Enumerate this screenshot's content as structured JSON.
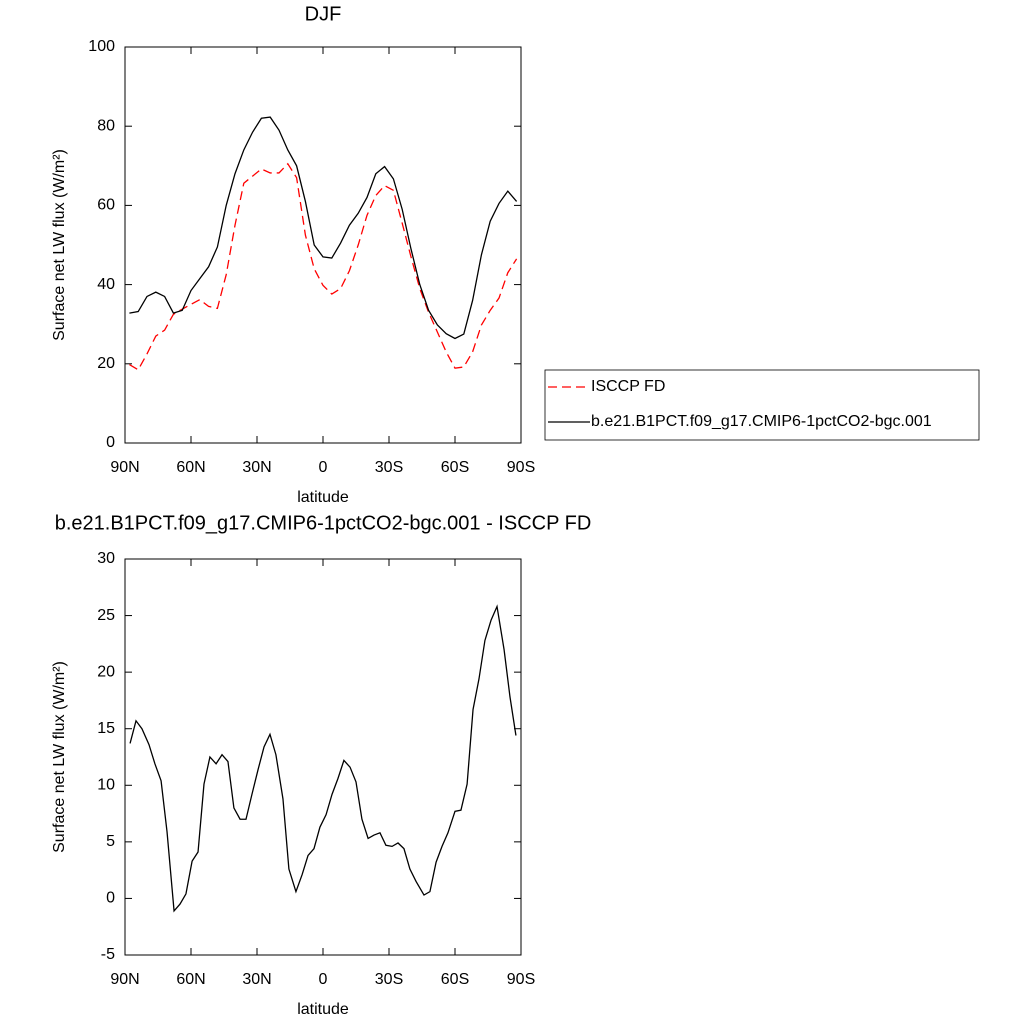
{
  "chart_data": [
    {
      "type": "line",
      "title": "DJF",
      "xlabel": "latitude",
      "ylabel": "Surface net LW flux (W/m²)",
      "x": [
        88,
        84,
        80,
        76,
        72,
        68,
        64,
        60,
        56,
        52,
        48,
        44,
        40,
        36,
        32,
        28,
        24,
        20,
        16,
        12,
        8,
        4,
        0,
        -4,
        -8,
        -12,
        -16,
        -20,
        -24,
        -28,
        -32,
        -36,
        -40,
        -44,
        -48,
        -52,
        -56,
        -60,
        -64,
        -68,
        -72,
        -76,
        -80,
        -84,
        -88
      ],
      "series": [
        {
          "name": "ISCCP FD",
          "color": "#ff0000",
          "linestyle": "dashed",
          "values": [
            19.8,
            18.5,
            22.5,
            27,
            28.5,
            32.5,
            33.8,
            35,
            36.2,
            34.5,
            34,
            42.5,
            55,
            65.6,
            67.4,
            69.2,
            68.2,
            68.2,
            70.5,
            67,
            52.5,
            44,
            39.8,
            37.6,
            39,
            43.5,
            50,
            57.5,
            62.5,
            65,
            63.8,
            55.5,
            47,
            39,
            33,
            28,
            23,
            18.9,
            19.2,
            23,
            29.8,
            33.5,
            36.6,
            43,
            46.5
          ]
        },
        {
          "name": "b.e21.B1PCT.f09_g17.CMIP6-1pctCO2-bgc.001",
          "color": "#000000",
          "linestyle": "solid",
          "values": [
            32.8,
            33.2,
            37,
            38.1,
            37,
            32.8,
            33.5,
            38.5,
            41.5,
            44.5,
            49.5,
            60,
            68,
            74,
            78.5,
            82,
            82.3,
            79,
            74,
            70,
            61,
            50,
            47,
            46.7,
            50.5,
            55,
            58,
            62,
            68,
            69.8,
            66.7,
            59,
            49,
            40,
            33.5,
            29.8,
            27.6,
            26.4,
            27.5,
            36,
            47.5,
            56,
            60.5,
            63.6,
            61
          ]
        }
      ],
      "xlim": [
        90,
        -90
      ],
      "xticks": [
        {
          "value": 90,
          "label": "90N"
        },
        {
          "value": 60,
          "label": "60N"
        },
        {
          "value": 30,
          "label": "30N"
        },
        0,
        {
          "value": -30,
          "label": "30S"
        },
        {
          "value": -60,
          "label": "60S"
        },
        {
          "value": -90,
          "label": "90S"
        }
      ],
      "ylim": [
        0,
        100
      ],
      "yticks": [
        0,
        20,
        40,
        60,
        80,
        100
      ],
      "legend": "right"
    },
    {
      "type": "line",
      "title": "b.e21.B1PCT.f09_g17.CMIP6-1pctCO2-bgc.001 - ISCCP FD",
      "xlabel": "latitude",
      "ylabel": "Surface net LW flux (W/m²)",
      "x": [
        87.7,
        85,
        82.3,
        79.1,
        76.4,
        73.6,
        70.9,
        67.7,
        65,
        62.3,
        59.5,
        56.8,
        54.1,
        51.4,
        48.6,
        45.9,
        43.2,
        40.5,
        37.7,
        35,
        32.3,
        29.5,
        26.8,
        24.1,
        21.4,
        18.2,
        15.5,
        12.3,
        9.5,
        6.8,
        4.1,
        1.4,
        -1.4,
        -4.1,
        -6.8,
        -9.5,
        -12.3,
        -15,
        -17.7,
        -20.5,
        -23.2,
        -25.9,
        -28.6,
        -31.4,
        -34.1,
        -36.8,
        -39.5,
        -42.3,
        -45.9,
        -48.6,
        -51.4,
        -54.1,
        -56.8,
        -60,
        -62.7,
        -65.5,
        -68.2,
        -70.9,
        -73.6,
        -76.4,
        -79.1,
        -82.3,
        -85,
        -87.7
      ],
      "series": [
        {
          "color": "#000000",
          "linestyle": "solid",
          "values": [
            13.7,
            15.7,
            15,
            13.6,
            11.9,
            10.4,
            5.9,
            -1.1,
            -0.5,
            0.4,
            3.3,
            4.1,
            10.1,
            12.5,
            11.9,
            12.7,
            12.1,
            8,
            7,
            7,
            9.2,
            11.4,
            13.4,
            14.5,
            12.7,
            8.8,
            2.6,
            0.6,
            2.1,
            3.8,
            4.4,
            6.3,
            7.4,
            9.2,
            10.6,
            12.2,
            11.6,
            10.3,
            7,
            5.3,
            5.6,
            5.8,
            4.7,
            4.6,
            4.9,
            4.4,
            2.6,
            1.5,
            0.3,
            0.6,
            3.2,
            4.6,
            5.8,
            7.7,
            7.8,
            10.1,
            16.7,
            19.4,
            22.8,
            24.6,
            25.8,
            22,
            17.8,
            14.4
          ]
        }
      ],
      "xlim": [
        90,
        -90
      ],
      "xticks": [
        {
          "value": 90,
          "label": "90N"
        },
        {
          "value": 60,
          "label": "60N"
        },
        {
          "value": 30,
          "label": "30N"
        },
        0,
        {
          "value": -30,
          "label": "30S"
        },
        {
          "value": -60,
          "label": "60S"
        },
        {
          "value": -90,
          "label": "90S"
        }
      ],
      "ylim": [
        -5,
        30
      ],
      "yticks": [
        -5,
        0,
        5,
        10,
        15,
        20,
        25,
        30
      ]
    }
  ]
}
